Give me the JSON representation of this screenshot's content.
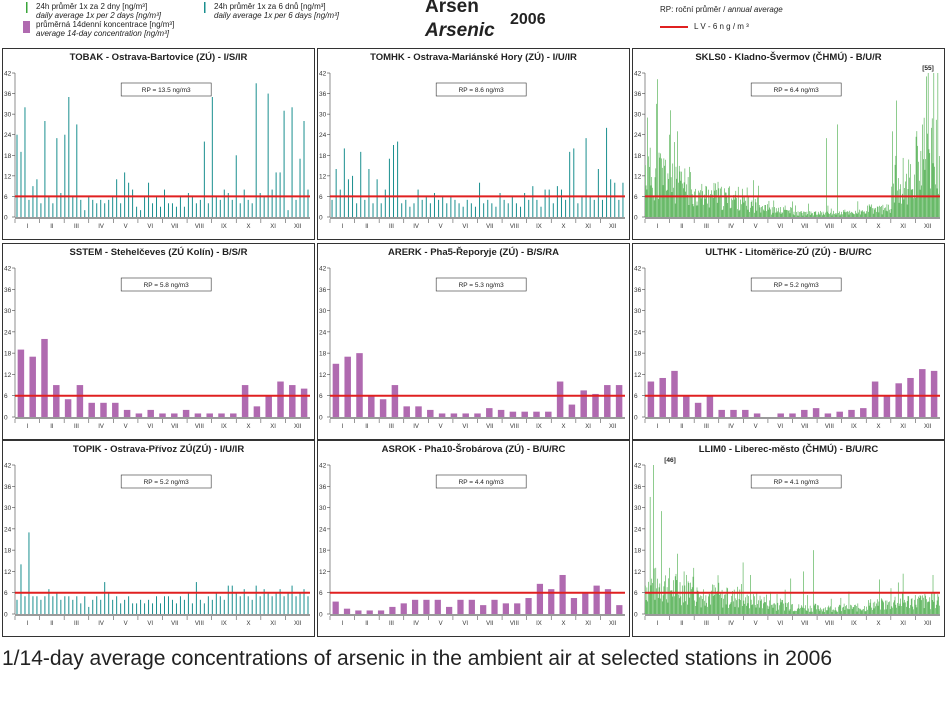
{
  "header": {
    "title_cz": "Arsen",
    "title_en": "Arsenic",
    "year": "2006",
    "legend": {
      "item_24h_2d_cz": "24h průměr 1x za 2 dny [ng/m³]",
      "item_24h_2d_en": "daily average 1x per 2 days [ng/m³]",
      "item_14d_cz": "průměrná 14denní koncentrace [ng/m³]",
      "item_14d_en": "average 14-day concentration [ng/m³]",
      "item_24h_6d_cz": "24h průměr 1x za 6 dnů [ng/m³]",
      "item_24h_6d_en": "daily average 1x per 6 days [ng/m³]",
      "rp_cz": "RP: roční průměr / ",
      "rp_en": "annual average",
      "lv": "L V   - 6 n g / m ³"
    }
  },
  "colors": {
    "green": "#3aa53a",
    "teal": "#1a8f8f",
    "purple": "#b06ab0",
    "limit": "#e02020"
  },
  "caption": "1/14-day average concentrations of arsenic in the ambient air at selected stations in 2006",
  "chart_data": [
    {
      "type": "bar",
      "title": "TOBAK - Ostrava-Bartovice (ZÚ) - I/S/IR",
      "annotation": "RP = 13.5 ng/m3",
      "ylim": [
        0,
        42
      ],
      "yticks": [
        0,
        6,
        12,
        18,
        24,
        30,
        36,
        42
      ],
      "months": [
        "I",
        "II",
        "III",
        "IV",
        "V",
        "VI",
        "VII",
        "VIII",
        "IX",
        "X",
        "XI",
        "XII"
      ],
      "limit": 6,
      "series": "teal",
      "values": [
        24,
        19,
        32,
        5,
        9,
        11,
        4,
        28,
        6,
        4,
        23,
        7,
        24,
        35,
        6,
        27,
        5,
        2,
        6,
        5,
        4,
        5,
        4,
        5,
        6,
        11,
        4,
        13,
        10,
        8,
        3,
        2,
        6,
        10,
        4,
        6,
        3,
        8,
        4,
        4,
        3,
        6,
        3,
        7,
        6,
        4,
        5,
        22,
        4,
        35,
        6,
        5,
        8,
        7,
        5,
        18,
        4,
        8,
        5,
        4,
        39,
        7,
        6,
        36,
        8,
        13,
        13,
        31,
        2,
        32,
        5,
        17,
        28,
        8
      ]
    },
    {
      "type": "bar",
      "title": "TOMHK - Ostrava-Mariánské Hory (ZÚ) - I/U/IR",
      "annotation": "RP = 8.6 ng/m3",
      "ylim": [
        0,
        42
      ],
      "yticks": [
        0,
        6,
        12,
        18,
        24,
        30,
        36,
        42
      ],
      "months": [
        "I",
        "II",
        "III",
        "IV",
        "V",
        "VI",
        "VII",
        "VIII",
        "IX",
        "X",
        "XI",
        "XII"
      ],
      "limit": 6,
      "series": "teal",
      "values": [
        5,
        14,
        8,
        20,
        11,
        12,
        4,
        19,
        5,
        14,
        4,
        11,
        4,
        8,
        17,
        21,
        22,
        4,
        5,
        3,
        4,
        8,
        5,
        6,
        4,
        7,
        5,
        6,
        4,
        6,
        5,
        4,
        3,
        5,
        4,
        3,
        10,
        4,
        5,
        4,
        3,
        7,
        5,
        4,
        6,
        4,
        3,
        7,
        5,
        9,
        5,
        3,
        8,
        8,
        4,
        9,
        8,
        5,
        19,
        20,
        4,
        6,
        23,
        6,
        5,
        14,
        5,
        26,
        11,
        10,
        5,
        10
      ]
    },
    {
      "type": "bar",
      "title": "SKLS0 - Kladno-Švermov (ČHMÚ) - B/U/R",
      "annotation": "RP = 6.4 ng/m3",
      "topnote": "[55]",
      "ylim": [
        0,
        42
      ],
      "yticks": [
        0,
        6,
        12,
        18,
        24,
        30,
        36,
        42
      ],
      "months": [
        "I",
        "II",
        "III",
        "IV",
        "V",
        "VI",
        "VII",
        "VIII",
        "IX",
        "X",
        "XI",
        "XII"
      ],
      "limit": 6,
      "series": "green",
      "dense": true,
      "seed": 11,
      "profile": [
        14,
        10,
        7,
        6,
        4,
        2,
        1.2,
        1.2,
        1.5,
        2.5,
        12,
        20
      ],
      "peaks": [
        [
          3,
          29
        ],
        [
          14,
          33
        ],
        [
          30,
          24
        ],
        [
          40,
          25
        ],
        [
          224,
          23
        ],
        [
          238,
          27
        ],
        [
          348,
          41
        ],
        [
          354,
          26
        ]
      ]
    },
    {
      "type": "bar",
      "title": "SSTEM - Stehelčeves (ZÚ Kolín) - B/S/R",
      "annotation": "RP = 5.8 ng/m3",
      "ylim": [
        0,
        42
      ],
      "yticks": [
        0,
        6,
        12,
        18,
        24,
        30,
        36,
        42
      ],
      "months": [
        "I",
        "II",
        "III",
        "IV",
        "V",
        "VI",
        "VII",
        "VIII",
        "IX",
        "X",
        "XI",
        "XII"
      ],
      "limit": 6,
      "series": "purple",
      "values": [
        19,
        17,
        22,
        9,
        5,
        9,
        4,
        4,
        4,
        2,
        1,
        2,
        1,
        1,
        2,
        1,
        1,
        1,
        1,
        9,
        3,
        6,
        10,
        9,
        8
      ]
    },
    {
      "type": "bar",
      "title": "ARERK - Pha5-Řeporyje (ZÚ) - B/S/RA",
      "annotation": "RP = 5.3 ng/m3",
      "ylim": [
        0,
        42
      ],
      "yticks": [
        0,
        6,
        12,
        18,
        24,
        30,
        36,
        42
      ],
      "months": [
        "I",
        "II",
        "III",
        "IV",
        "V",
        "VI",
        "VII",
        "VIII",
        "IX",
        "X",
        "XI",
        "XII"
      ],
      "limit": 6,
      "series": "purple",
      "values": [
        15,
        17,
        18,
        6,
        5,
        9,
        3,
        3,
        2,
        1,
        1,
        1,
        1,
        2.5,
        2,
        1.5,
        1.5,
        1.5,
        1.5,
        10,
        3.5,
        7.5,
        6.5,
        9,
        9
      ]
    },
    {
      "type": "bar",
      "title": "ULTHK - Litoměřice-ZÚ (ZÚ) - B/U/RC",
      "annotation": "RP = 5.2 ng/m3",
      "ylim": [
        0,
        42
      ],
      "yticks": [
        0,
        6,
        12,
        18,
        24,
        30,
        36,
        42
      ],
      "months": [
        "I",
        "II",
        "III",
        "IV",
        "V",
        "VI",
        "VII",
        "VIII",
        "IX",
        "X",
        "XI",
        "XII"
      ],
      "limit": 6,
      "series": "purple",
      "values": [
        10,
        11,
        13,
        6,
        4,
        6,
        2,
        2,
        2,
        1,
        0,
        1,
        1,
        2,
        2.5,
        1,
        1.5,
        2,
        2.5,
        10,
        6,
        9.5,
        11,
        13.5,
        13
      ]
    },
    {
      "type": "bar",
      "title": "TOPIK - Ostrava-Přívoz ZÚ(ZÚ) - I/U/IR",
      "annotation": "RP = 5.2 ng/m3",
      "ylim": [
        0,
        42
      ],
      "yticks": [
        0,
        6,
        12,
        18,
        24,
        30,
        36,
        42
      ],
      "months": [
        "I",
        "II",
        "III",
        "IV",
        "V",
        "VI",
        "VII",
        "VIII",
        "IX",
        "X",
        "XI",
        "XII"
      ],
      "limit": 6,
      "series": "teal",
      "values": [
        4,
        14,
        5,
        23,
        5,
        5,
        4,
        5,
        7,
        5,
        6,
        4,
        5,
        5,
        4,
        5,
        3,
        5,
        2,
        4,
        5,
        4,
        9,
        6,
        4,
        5,
        3,
        4,
        5,
        3,
        3,
        4,
        3,
        4,
        3,
        5,
        3,
        5,
        5,
        4,
        3,
        5,
        4,
        6,
        3,
        9,
        4,
        3,
        5,
        4,
        6,
        5,
        4,
        8,
        8,
        6,
        5,
        7,
        5,
        4,
        8,
        5,
        7,
        6,
        5,
        6,
        7,
        5,
        6,
        8,
        5,
        6,
        7,
        5
      ]
    },
    {
      "type": "bar",
      "title": "ASROK - Pha10-Šrobárova (ZÚ) - B/U/RC",
      "annotation": "RP = 4.4 ng/m3",
      "ylim": [
        0,
        42
      ],
      "yticks": [
        0,
        6,
        12,
        18,
        24,
        30,
        36,
        42
      ],
      "months": [
        "I",
        "II",
        "III",
        "IV",
        "V",
        "VI",
        "VII",
        "VIII",
        "IX",
        "X",
        "XI",
        "XII"
      ],
      "limit": 6,
      "series": "purple",
      "values": [
        3.5,
        1.5,
        1,
        1,
        1,
        2,
        3,
        4,
        4,
        4,
        2,
        4,
        4,
        2.5,
        4,
        3,
        3,
        4.5,
        8.5,
        7,
        11,
        4.5,
        6,
        8,
        7,
        2.5
      ]
    },
    {
      "type": "bar",
      "title": "LLIM0 - Liberec-město (ČHMÚ) - B/U/RC",
      "annotation": "RP = 4.1 ng/m3",
      "topnote": "[46]",
      "ylim": [
        0,
        42
      ],
      "yticks": [
        0,
        6,
        12,
        18,
        24,
        30,
        36,
        42
      ],
      "months": [
        "I",
        "II",
        "III",
        "IV",
        "V",
        "VI",
        "VII",
        "VIII",
        "IX",
        "X",
        "XI",
        "XII"
      ],
      "limit": 6,
      "series": "green",
      "dense": true,
      "seed": 7,
      "profile": [
        9,
        8,
        6,
        5,
        4,
        3,
        2,
        1.8,
        2,
        3,
        4,
        4
      ],
      "peaks": [
        [
          6,
          33
        ],
        [
          10,
          42
        ],
        [
          20,
          29
        ],
        [
          48,
          12
        ],
        [
          60,
          13
        ],
        [
          130,
          11
        ],
        [
          180,
          10
        ],
        [
          196,
          12
        ],
        [
          208,
          18
        ]
      ]
    }
  ]
}
